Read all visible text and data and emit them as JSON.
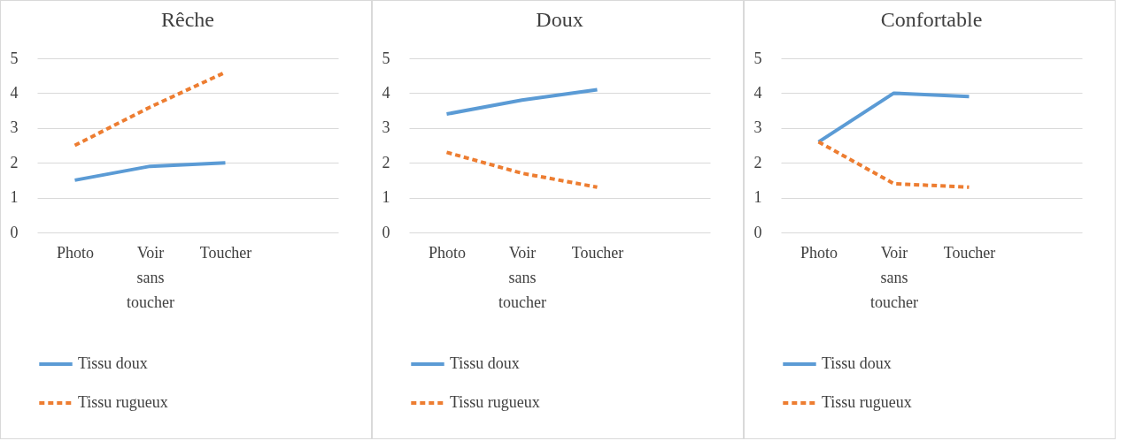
{
  "chart_data": [
    {
      "type": "line",
      "title": "Rêche",
      "categories": [
        "Photo",
        "Voir sans toucher",
        "Toucher",
        null
      ],
      "ylim": [
        0,
        5
      ],
      "yticks": [
        0,
        1,
        2,
        3,
        4,
        5
      ],
      "grid": "y",
      "legend": "bottom",
      "series": [
        {
          "name": "Tissu doux",
          "color": "#5b9bd5",
          "line_style": "solid",
          "values": [
            1.5,
            1.9,
            2.0,
            null
          ]
        },
        {
          "name": "Tissu rugueux",
          "color": "#ed7d31",
          "line_style": "dashed",
          "values": [
            2.5,
            3.6,
            4.6,
            null
          ]
        }
      ]
    },
    {
      "type": "line",
      "title": "Doux",
      "categories": [
        "Photo",
        "Voir sans toucher",
        "Toucher",
        null
      ],
      "ylim": [
        0,
        5
      ],
      "yticks": [
        0,
        1,
        2,
        3,
        4,
        5
      ],
      "grid": "y",
      "legend": "bottom",
      "series": [
        {
          "name": "Tissu doux",
          "color": "#5b9bd5",
          "line_style": "solid",
          "values": [
            3.4,
            3.8,
            4.1,
            null
          ]
        },
        {
          "name": "Tissu rugueux",
          "color": "#ed7d31",
          "line_style": "dashed",
          "values": [
            2.3,
            1.7,
            1.3,
            null
          ]
        }
      ]
    },
    {
      "type": "line",
      "title": "Confortable",
      "categories": [
        "Photo",
        "Voir sans toucher",
        "Toucher",
        null
      ],
      "ylim": [
        0,
        5
      ],
      "yticks": [
        0,
        1,
        2,
        3,
        4,
        5
      ],
      "grid": "y",
      "legend": "bottom",
      "series": [
        {
          "name": "Tissu doux",
          "color": "#5b9bd5",
          "line_style": "solid",
          "values": [
            2.6,
            4.0,
            3.9,
            null
          ]
        },
        {
          "name": "Tissu rugueux",
          "color": "#ed7d31",
          "line_style": "dashed",
          "values": [
            2.6,
            1.4,
            1.3,
            null
          ]
        }
      ]
    }
  ]
}
